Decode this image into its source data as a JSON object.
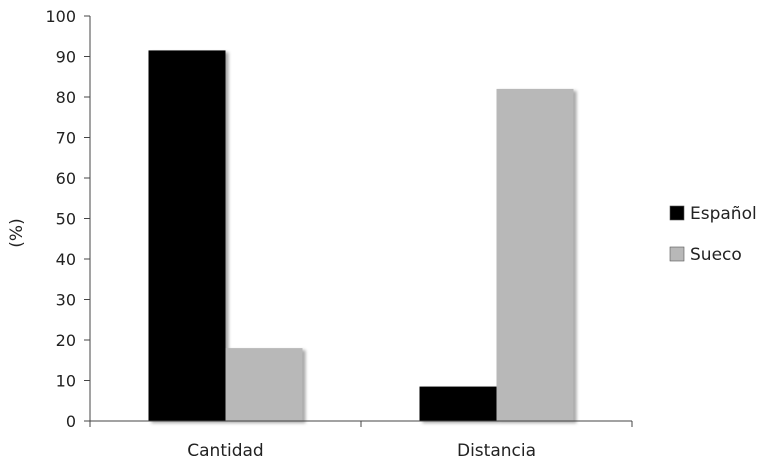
{
  "chart_data": {
    "type": "bar",
    "title": "",
    "xlabel": "",
    "ylabel": "(%)",
    "ylim": [
      0,
      100
    ],
    "yticks": [
      0,
      10,
      20,
      30,
      40,
      50,
      60,
      70,
      80,
      90,
      100
    ],
    "categories": [
      "Cantidad",
      "Distancia"
    ],
    "series": [
      {
        "name": "Español",
        "values": [
          91.5,
          8.5
        ],
        "color": "#000000"
      },
      {
        "name": "Sueco",
        "values": [
          18,
          82
        ],
        "color": "#b8b8b8"
      }
    ],
    "legend_position": "right",
    "grid": false
  }
}
